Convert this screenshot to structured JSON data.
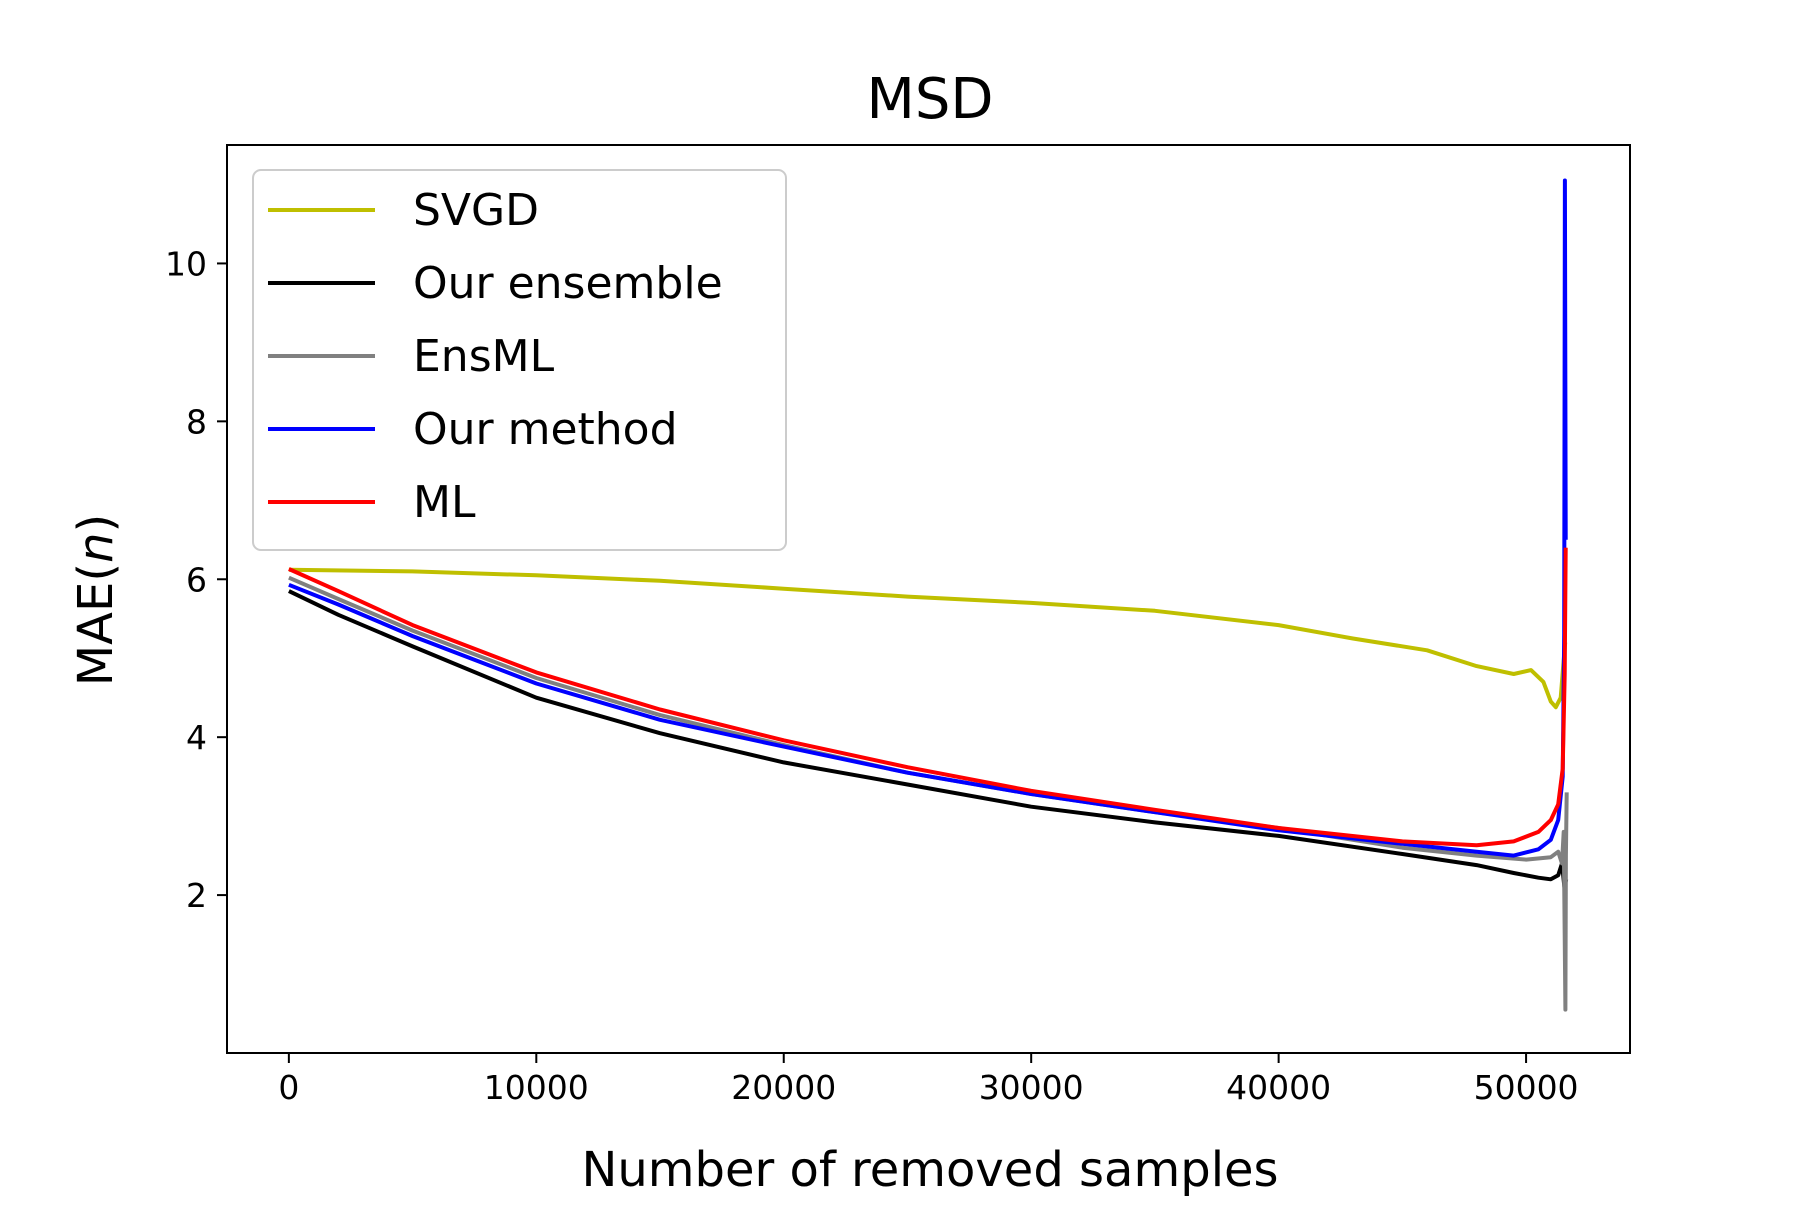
{
  "chart_data": {
    "type": "line",
    "title": "MSD",
    "xlabel": "Number of removed samples",
    "ylabel_prefix": "MAE(",
    "ylabel_var": "n",
    "ylabel_suffix": ")",
    "xlim": [
      -2500,
      54200
    ],
    "ylim": [
      0,
      11.5
    ],
    "xticks": [
      0,
      10000,
      20000,
      30000,
      40000,
      50000
    ],
    "xtick_labels": [
      "0",
      "10000",
      "20000",
      "30000",
      "40000",
      "50000"
    ],
    "yticks": [
      2,
      4,
      6,
      8,
      10
    ],
    "ytick_labels": [
      "2",
      "4",
      "6",
      "8",
      "10"
    ],
    "grid": false,
    "legend_position": "top-left",
    "series": [
      {
        "name": "SVGD",
        "color": "#bfbf00",
        "points": [
          [
            0,
            6.12
          ],
          [
            5000,
            6.1
          ],
          [
            10000,
            6.05
          ],
          [
            15000,
            5.98
          ],
          [
            20000,
            5.88
          ],
          [
            25000,
            5.78
          ],
          [
            30000,
            5.7
          ],
          [
            35000,
            5.6
          ],
          [
            40000,
            5.42
          ],
          [
            43000,
            5.25
          ],
          [
            46000,
            5.1
          ],
          [
            48000,
            4.9
          ],
          [
            49500,
            4.8
          ],
          [
            50200,
            4.85
          ],
          [
            50700,
            4.7
          ],
          [
            51000,
            4.45
          ],
          [
            51200,
            4.38
          ],
          [
            51400,
            4.5
          ],
          [
            51500,
            4.9
          ],
          [
            51580,
            5.2
          ]
        ]
      },
      {
        "name": "Our ensemble",
        "color": "#000000",
        "points": [
          [
            0,
            5.85
          ],
          [
            2000,
            5.55
          ],
          [
            5000,
            5.15
          ],
          [
            10000,
            4.5
          ],
          [
            15000,
            4.05
          ],
          [
            20000,
            3.68
          ],
          [
            25000,
            3.4
          ],
          [
            30000,
            3.12
          ],
          [
            35000,
            2.92
          ],
          [
            40000,
            2.75
          ],
          [
            45000,
            2.52
          ],
          [
            48000,
            2.38
          ],
          [
            49500,
            2.28
          ],
          [
            50500,
            2.22
          ],
          [
            51000,
            2.2
          ],
          [
            51300,
            2.25
          ],
          [
            51450,
            2.4
          ],
          [
            51550,
            2.1
          ],
          [
            51620,
            2.2
          ]
        ]
      },
      {
        "name": "EnsML",
        "color": "#808080",
        "points": [
          [
            0,
            6.02
          ],
          [
            2000,
            5.75
          ],
          [
            5000,
            5.35
          ],
          [
            10000,
            4.75
          ],
          [
            15000,
            4.28
          ],
          [
            20000,
            3.9
          ],
          [
            25000,
            3.55
          ],
          [
            30000,
            3.28
          ],
          [
            35000,
            3.05
          ],
          [
            40000,
            2.85
          ],
          [
            45000,
            2.6
          ],
          [
            48000,
            2.5
          ],
          [
            50000,
            2.45
          ],
          [
            51000,
            2.48
          ],
          [
            51300,
            2.55
          ],
          [
            51450,
            2.4
          ],
          [
            51520,
            2.8
          ],
          [
            51560,
            1.5
          ],
          [
            51590,
            0.55
          ],
          [
            51610,
            2.5
          ],
          [
            51640,
            3.3
          ]
        ]
      },
      {
        "name": "Our method",
        "color": "#0000ff",
        "points": [
          [
            0,
            5.93
          ],
          [
            2000,
            5.68
          ],
          [
            5000,
            5.28
          ],
          [
            10000,
            4.68
          ],
          [
            15000,
            4.22
          ],
          [
            20000,
            3.88
          ],
          [
            25000,
            3.55
          ],
          [
            30000,
            3.28
          ],
          [
            35000,
            3.05
          ],
          [
            40000,
            2.82
          ],
          [
            45000,
            2.65
          ],
          [
            48000,
            2.55
          ],
          [
            49500,
            2.5
          ],
          [
            50500,
            2.58
          ],
          [
            51000,
            2.7
          ],
          [
            51300,
            2.95
          ],
          [
            51480,
            3.5
          ],
          [
            51540,
            5.3
          ],
          [
            51570,
            11.05
          ],
          [
            51600,
            6.5
          ]
        ]
      },
      {
        "name": "ML",
        "color": "#ff0000",
        "points": [
          [
            0,
            6.13
          ],
          [
            2000,
            5.85
          ],
          [
            5000,
            5.42
          ],
          [
            10000,
            4.82
          ],
          [
            15000,
            4.35
          ],
          [
            20000,
            3.96
          ],
          [
            25000,
            3.62
          ],
          [
            30000,
            3.32
          ],
          [
            35000,
            3.08
          ],
          [
            40000,
            2.85
          ],
          [
            45000,
            2.68
          ],
          [
            48000,
            2.63
          ],
          [
            49500,
            2.68
          ],
          [
            50500,
            2.8
          ],
          [
            51000,
            2.95
          ],
          [
            51300,
            3.15
          ],
          [
            51480,
            3.6
          ],
          [
            51560,
            4.8
          ],
          [
            51600,
            6.4
          ]
        ]
      }
    ]
  }
}
